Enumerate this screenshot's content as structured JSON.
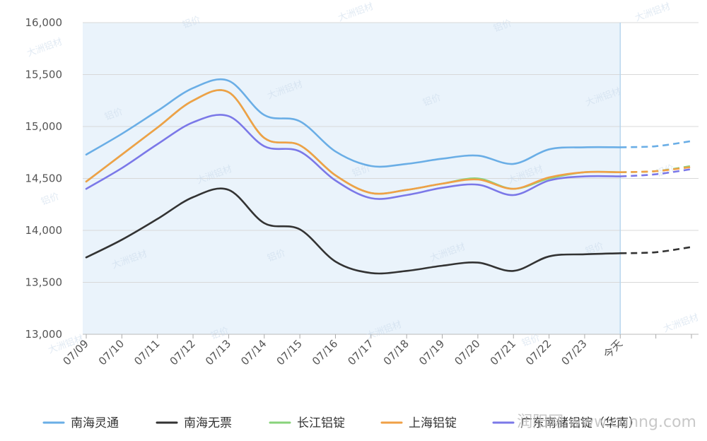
{
  "chart_data": {
    "type": "line",
    "title": "",
    "xlabel": "",
    "ylabel": "",
    "categories": [
      "07/09",
      "07/10",
      "07/11",
      "07/12",
      "07/13",
      "07/14",
      "07/15",
      "07/16",
      "07/17",
      "07/18",
      "07/19",
      "07/20",
      "07/21",
      "07/22",
      "07/23",
      "今天",
      "",
      ""
    ],
    "actual_through_index": 15,
    "ylim": [
      13000,
      16000
    ],
    "yticks": [
      "13,000",
      "13,500",
      "14,000",
      "14,500",
      "15,000",
      "15,500",
      "16,000"
    ],
    "grid": true,
    "legend_position": "bottom",
    "series": [
      {
        "name": "南海灵通",
        "color": "#6aaee6",
        "values": [
          14730,
          14930,
          15150,
          15370,
          15440,
          15110,
          15050,
          14760,
          14620,
          14640,
          14690,
          14720,
          14640,
          14780,
          14800,
          14800,
          14810,
          14860
        ]
      },
      {
        "name": "南海无票",
        "color": "#333333",
        "values": [
          13740,
          13910,
          14110,
          14320,
          14390,
          14070,
          14010,
          13700,
          13590,
          13610,
          13660,
          13690,
          13610,
          13750,
          13770,
          13780,
          13790,
          13840
        ]
      },
      {
        "name": "长江铝锭",
        "color": "#88d37a",
        "values": [
          14470,
          14730,
          14990,
          15250,
          15330,
          14890,
          14820,
          14530,
          14360,
          14390,
          14450,
          14500,
          14400,
          14500,
          14560,
          14560,
          14570,
          14620
        ]
      },
      {
        "name": "上海铝锭",
        "color": "#f0a046",
        "values": [
          14470,
          14730,
          14990,
          15250,
          15330,
          14890,
          14820,
          14530,
          14360,
          14390,
          14450,
          14490,
          14400,
          14510,
          14560,
          14560,
          14570,
          14610
        ]
      },
      {
        "name": "广东南储铝锭（华南）",
        "color": "#7b78e8",
        "values": [
          14400,
          14600,
          14830,
          15040,
          15100,
          14810,
          14760,
          14480,
          14310,
          14340,
          14410,
          14440,
          14340,
          14480,
          14520,
          14520,
          14540,
          14590
        ]
      }
    ]
  },
  "watermark": {
    "text": "铝价",
    "logo_text": "大洲铝材",
    "corner_text": "润阳网 www.cunng.com"
  }
}
